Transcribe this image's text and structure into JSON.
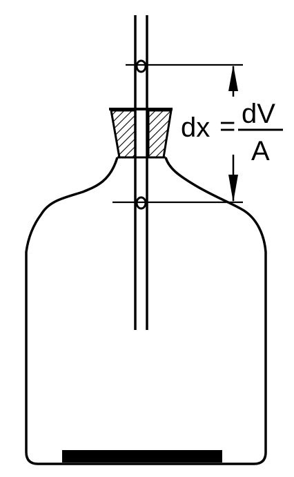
{
  "diagram": {
    "equation": {
      "lhs": "dx",
      "equals": "=",
      "numerator": "dV",
      "denominator": "A"
    },
    "colors": {
      "stroke": "#000000",
      "background": "#ffffff"
    }
  }
}
